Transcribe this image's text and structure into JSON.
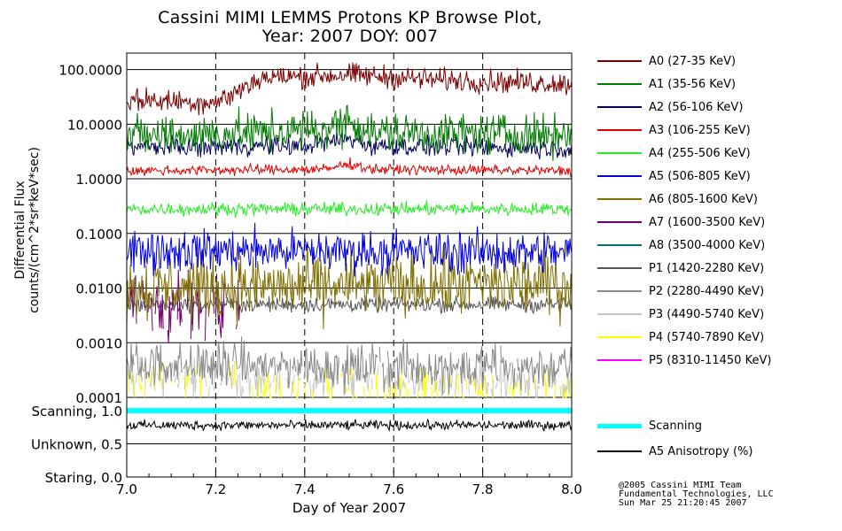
{
  "chart_data": {
    "type": "line",
    "title": "Cassini MIMI LEMMS Protons KP Browse Plot,",
    "subtitle": "Year: 2007 DOY: 007",
    "xlabel": "Day of Year 2007",
    "ylabel": [
      "Differential Flux",
      "counts/(cm^2*sr*keV*sec)"
    ],
    "xlim": [
      7.0,
      8.0
    ],
    "x_ticks": [
      "7.0",
      "7.2",
      "7.4",
      "7.6",
      "7.8",
      "8.0"
    ],
    "flux_panel": {
      "yscale": "log",
      "ylim": [
        0.0001,
        200
      ],
      "y_ticks": [
        {
          "value": 100,
          "label": "100.0000"
        },
        {
          "value": 10,
          "label": "10.0000"
        },
        {
          "value": 1,
          "label": "1.0000"
        },
        {
          "value": 0.1,
          "label": "0.1000"
        },
        {
          "value": 0.01,
          "label": "0.0100"
        },
        {
          "value": 0.001,
          "label": "0.0010"
        },
        {
          "value": 0.0001,
          "label": "0.0001"
        }
      ]
    },
    "status_panel": {
      "y_ticks": [
        {
          "value": 1.0,
          "label": "Scanning, 1.0"
        },
        {
          "value": 0.5,
          "label": "Unknown, 0.5"
        },
        {
          "value": 0.0,
          "label": "Staring, 0.0"
        }
      ]
    },
    "series": [
      {
        "name": "A0 (27-35 KeV)",
        "color": "#7a0000",
        "profile": [
          [
            7.0,
            28
          ],
          [
            7.2,
            25
          ],
          [
            7.25,
            40
          ],
          [
            7.3,
            70
          ],
          [
            7.5,
            80
          ],
          [
            7.7,
            65
          ],
          [
            8.0,
            55
          ]
        ],
        "noise": 0.18,
        "drop": 0
      },
      {
        "name": "A1 (35-56 KeV)",
        "color": "#007a00",
        "profile": [
          [
            7.0,
            6
          ],
          [
            7.3,
            7
          ],
          [
            7.45,
            8
          ],
          [
            7.5,
            12
          ],
          [
            7.55,
            7
          ],
          [
            8.0,
            6.5
          ]
        ],
        "noise": 0.32,
        "drop": 0
      },
      {
        "name": "A2 (56-106 KeV)",
        "color": "#00005a",
        "profile": [
          [
            7.0,
            3.8
          ],
          [
            7.4,
            4
          ],
          [
            7.5,
            5.5
          ],
          [
            7.55,
            4
          ],
          [
            8.0,
            3.6
          ]
        ],
        "noise": 0.15,
        "drop": 0
      },
      {
        "name": "A3 (106-255 KeV)",
        "color": "#e00000",
        "profile": [
          [
            7.0,
            1.4
          ],
          [
            7.45,
            1.5
          ],
          [
            7.5,
            1.9
          ],
          [
            7.55,
            1.5
          ],
          [
            8.0,
            1.4
          ]
        ],
        "noise": 0.08,
        "drop": 0
      },
      {
        "name": "A4 (255-506 KeV)",
        "color": "#22ee22",
        "profile": [
          [
            7.0,
            0.28
          ],
          [
            8.0,
            0.28
          ]
        ],
        "noise": 0.1,
        "drop": 0
      },
      {
        "name": "A5 (506-805 KeV)",
        "color": "#0000dd",
        "profile": [
          [
            7.0,
            0.05
          ],
          [
            8.0,
            0.045
          ]
        ],
        "noise": 0.33,
        "drop": 0
      },
      {
        "name": "A6 (805-1600 KeV)",
        "color": "#807000",
        "profile": [
          [
            7.0,
            0.01
          ],
          [
            8.0,
            0.012
          ]
        ],
        "noise": 0.5,
        "drop": 0
      },
      {
        "name": "A7 (1600-3500 KeV)",
        "color": "#700070",
        "profile": [
          [
            7.0,
            0.006
          ],
          [
            7.25,
            0.005
          ],
          [
            7.26,
            0
          ]
        ],
        "noise": 0.55,
        "drop": 0.2
      },
      {
        "name": "A8 (3500-4000 KeV)",
        "color": "#007070",
        "profile": [],
        "noise": 0,
        "drop": 0
      },
      {
        "name": "P1 (1420-2280 KeV)",
        "color": "#555555",
        "profile": [
          [
            7.0,
            0.005
          ],
          [
            8.0,
            0.005
          ]
        ],
        "noise": 0.12,
        "drop": 0
      },
      {
        "name": "P2 (2280-4490 KeV)",
        "color": "#888888",
        "profile": [
          [
            7.0,
            0.0004
          ],
          [
            8.0,
            0.00035
          ]
        ],
        "noise": 0.35,
        "drop": 0.05
      },
      {
        "name": "P3 (4490-5740 KeV)",
        "color": "#c8c8c8",
        "profile": [
          [
            7.0,
            0.00022
          ],
          [
            8.0,
            0.00018
          ]
        ],
        "noise": 0.3,
        "drop": 0.3
      },
      {
        "name": "P4 (5740-7890 KeV)",
        "color": "#ffff00",
        "profile": [
          [
            7.0,
            0.0002
          ],
          [
            7.25,
            0.0002
          ],
          [
            7.26,
            0.00014
          ],
          [
            8.0,
            0.00014
          ]
        ],
        "noise": 0.35,
        "drop": 0.4
      },
      {
        "name": "P5 (8310-11450 KeV)",
        "color": "#ff00ff",
        "profile": [],
        "noise": 0,
        "drop": 0
      }
    ],
    "status_series": [
      {
        "name": "Scanning",
        "color": "#00ffff",
        "value": 1.0
      },
      {
        "name": "A5 Anisotropy (%)",
        "color": "#000000",
        "value": 0.78,
        "noise": 0.06
      }
    ]
  },
  "credit": [
    "@2005 Cassini MIMI Team",
    "Fundamental Technologies, LLC",
    "Sun Mar 25 21:20:45 2007"
  ]
}
